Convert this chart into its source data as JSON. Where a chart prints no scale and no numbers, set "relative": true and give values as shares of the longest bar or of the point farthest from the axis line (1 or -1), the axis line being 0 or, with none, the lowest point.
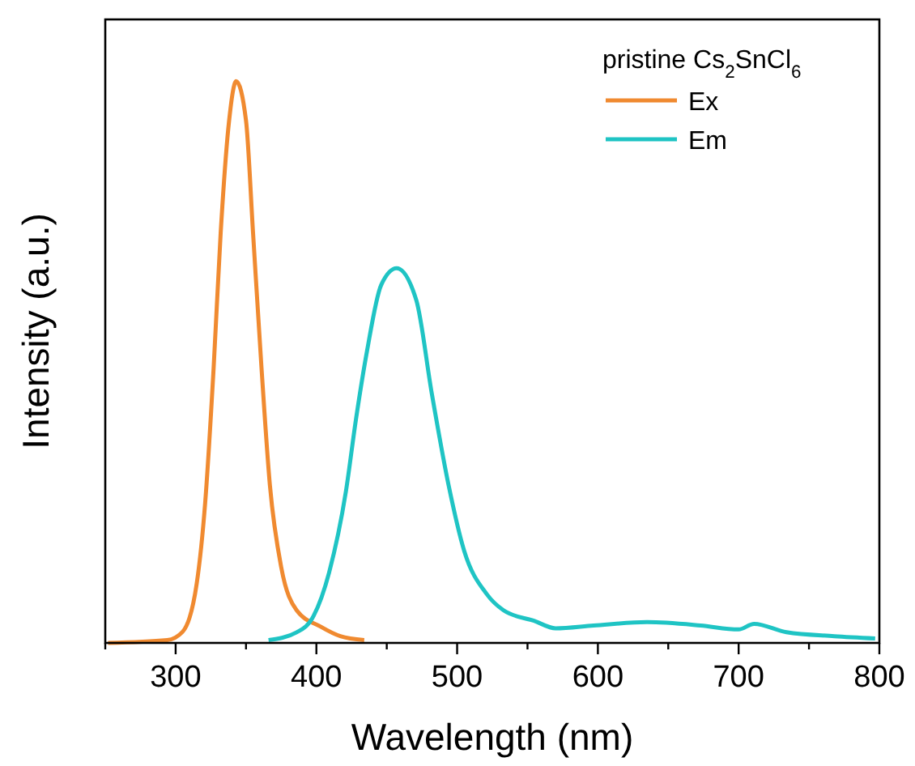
{
  "chart_data": {
    "type": "line",
    "relative": true,
    "xlabel": "Wavelength (nm)",
    "ylabel": "Intensity (a.u.)",
    "legend_title": "pristine Cs$_{2}$SnCl$_{6}$",
    "legend": "top right",
    "xlim": [
      250,
      800
    ],
    "xticks": [
      {
        "value": 250,
        "label": null
      },
      300,
      {
        "value": 350,
        "label": null
      },
      400,
      {
        "value": 450,
        "label": null
      },
      500,
      {
        "value": 550,
        "label": null
      },
      600,
      {
        "value": 650,
        "label": null
      },
      700,
      {
        "value": 750,
        "label": null
      },
      800
    ],
    "series": [
      {
        "name": "Ex",
        "color": "#f08a30",
        "x": [
          252,
          294,
          305,
          315,
          321,
          327,
          332,
          338,
          343,
          350,
          355,
          361,
          367,
          375,
          386,
          403,
          417,
          434
        ],
        "values": [
          0,
          0.005,
          0.02,
          0.106,
          0.25,
          0.49,
          0.73,
          0.93,
          1,
          0.93,
          0.73,
          0.49,
          0.28,
          0.135,
          0.058,
          0.029,
          0.012,
          0.005
        ]
      },
      {
        "name": "Em",
        "color": "#1fc4c4",
        "x": [
          366,
          386,
          398,
          409,
          421,
          428,
          436,
          446,
          457,
          471,
          482,
          494,
          505,
          521,
          533,
          555,
          570,
          597,
          635,
          673,
          700,
          711,
          734,
          768,
          797
        ],
        "values": [
          0.005,
          0.019,
          0.048,
          0.125,
          0.27,
          0.396,
          0.52,
          0.637,
          0.667,
          0.61,
          0.444,
          0.28,
          0.164,
          0.087,
          0.058,
          0.039,
          0.026,
          0.031,
          0.037,
          0.031,
          0.024,
          0.034,
          0.019,
          0.012,
          0.008
        ]
      }
    ]
  }
}
